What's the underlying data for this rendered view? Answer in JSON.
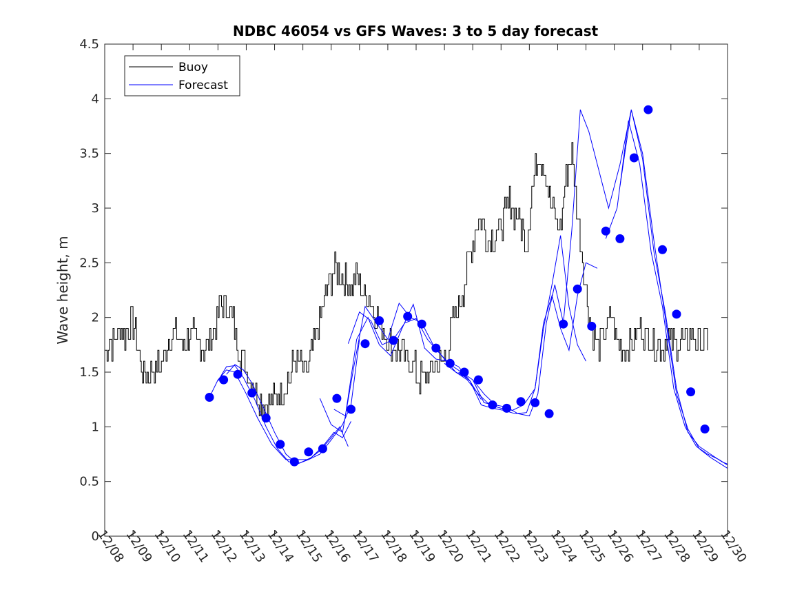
{
  "chart_data": {
    "type": "line",
    "title": "NDBC 46054 vs GFS Waves: 3 to 5 day forecast",
    "xlabel": "",
    "ylabel": "Wave height, m",
    "xlim": [
      0,
      22
    ],
    "ylim": [
      0,
      4.5
    ],
    "x_unit": "days since 12/08",
    "x_tick_values": [
      0,
      1,
      2,
      3,
      4,
      5,
      6,
      7,
      8,
      9,
      10,
      11,
      12,
      13,
      14,
      15,
      16,
      17,
      18,
      19,
      20,
      21,
      22
    ],
    "x_tick_labels": [
      "12/08",
      "12/09",
      "12/10",
      "12/11",
      "12/12",
      "12/13",
      "12/14",
      "12/15",
      "12/16",
      "12/17",
      "12/18",
      "12/19",
      "12/20",
      "12/21",
      "12/22",
      "12/23",
      "12/24",
      "12/25",
      "12/26",
      "12/27",
      "12/28",
      "12/29",
      "12/30"
    ],
    "y_tick_values": [
      0,
      0.5,
      1,
      1.5,
      2,
      2.5,
      3,
      3.5,
      4,
      4.5
    ],
    "y_tick_labels": [
      "0",
      "0.5",
      "1",
      "1.5",
      "2",
      "2.5",
      "3",
      "3.5",
      "4",
      "4.5"
    ],
    "grid": false,
    "legend": {
      "position": "top-left",
      "entries": [
        "Buoy",
        "Forecast"
      ]
    },
    "colors": {
      "buoy": "#000000",
      "forecast": "#0000ff",
      "axis": "#262626"
    },
    "buoy": {
      "name": "Buoy",
      "x": [
        0,
        0.15,
        0.3,
        0.5,
        0.7,
        0.9,
        1.1,
        1.3,
        1.5,
        1.7,
        1.9,
        2.1,
        2.3,
        2.5,
        2.7,
        2.9,
        3.1,
        3.3,
        3.5,
        3.7,
        3.9,
        4.1,
        4.3,
        4.5,
        4.7,
        4.9,
        5.1,
        5.3,
        5.5,
        5.7,
        5.9,
        6.1,
        6.3,
        6.5,
        6.7,
        6.9,
        7.1,
        7.3,
        7.5,
        7.7,
        7.9,
        8.1,
        8.3,
        8.5,
        8.7,
        8.9,
        9.1,
        9.3,
        9.5,
        9.7,
        9.9,
        10.1,
        10.3,
        10.5,
        10.7,
        10.9,
        11.1,
        11.3,
        11.5,
        11.7,
        11.9,
        12.1,
        12.3,
        12.5,
        12.7,
        12.9,
        13.1,
        13.3,
        13.5,
        13.7,
        13.9,
        14.1,
        14.3,
        14.5,
        14.7,
        14.9,
        15.1,
        15.3,
        15.5,
        15.7,
        15.9,
        16.1,
        16.3,
        16.5,
        16.7,
        16.9,
        17.1,
        17.3,
        17.5,
        17.7,
        17.9,
        18.1,
        18.3,
        18.5,
        18.7,
        18.9,
        19.1,
        19.3,
        19.5,
        19.7,
        19.9,
        20.1,
        20.3,
        20.5,
        20.7,
        20.9,
        21.1,
        21.3
      ],
      "values": [
        1.7,
        1.8,
        1.75,
        1.9,
        1.8,
        1.95,
        1.85,
        1.5,
        1.45,
        1.5,
        1.55,
        1.6,
        1.85,
        1.9,
        1.75,
        1.8,
        1.85,
        1.75,
        1.7,
        1.8,
        1.9,
        2.15,
        2.1,
        2.0,
        1.75,
        1.6,
        1.45,
        1.35,
        1.25,
        1.2,
        1.25,
        1.3,
        1.35,
        1.45,
        1.6,
        1.55,
        1.5,
        1.65,
        1.9,
        2.1,
        2.3,
        2.45,
        2.4,
        2.35,
        2.3,
        2.35,
        2.25,
        2.2,
        2.05,
        1.95,
        1.85,
        1.75,
        1.7,
        1.65,
        1.6,
        1.55,
        1.45,
        1.4,
        1.5,
        1.6,
        1.55,
        1.7,
        1.95,
        2.1,
        2.3,
        2.6,
        2.8,
        2.9,
        2.7,
        2.75,
        2.8,
        2.9,
        3.05,
        2.95,
        2.85,
        2.7,
        3.2,
        3.5,
        3.4,
        3.1,
        2.9,
        2.8,
        3.3,
        3.5,
        2.9,
        2.5,
        2.0,
        1.8,
        1.75,
        1.9,
        2.0,
        1.8,
        1.7,
        1.75,
        1.8,
        1.9,
        1.85,
        1.8,
        1.75,
        1.75,
        1.8,
        1.75,
        1.8,
        1.75,
        1.85,
        1.8,
        1.8,
        1.8
      ]
    },
    "forecast_runs": [
      {
        "x": [
          3.7,
          4.0,
          4.3,
          4.6,
          5.0,
          5.4,
          5.9,
          6.4,
          6.8,
          7.2,
          7.6,
          8.0,
          8.3,
          8.6
        ],
        "values": [
          1.27,
          1.43,
          1.52,
          1.5,
          1.3,
          1.08,
          0.84,
          0.7,
          0.7,
          0.7,
          0.78,
          0.9,
          1.0,
          0.82
        ]
      },
      {
        "x": [
          4.0,
          4.3,
          4.6,
          4.9,
          5.3,
          5.7,
          6.1,
          6.5,
          6.9,
          7.3,
          7.7,
          8.1,
          8.4,
          8.7
        ],
        "values": [
          1.42,
          1.55,
          1.56,
          1.45,
          1.25,
          1.0,
          0.8,
          0.68,
          0.67,
          0.72,
          0.82,
          0.95,
          0.9,
          1.05
        ]
      },
      {
        "x": [
          4.3,
          4.6,
          4.9,
          5.2,
          5.6,
          6.0,
          6.4,
          6.8,
          7.2,
          7.6,
          8.0,
          8.4,
          8.7,
          9.0
        ],
        "values": [
          1.48,
          1.57,
          1.52,
          1.4,
          1.18,
          0.95,
          0.75,
          0.66,
          0.7,
          0.75,
          0.88,
          1.02,
          1.2,
          1.8
        ]
      },
      {
        "x": [
          7.6,
          8.0,
          8.4,
          8.8,
          9.2,
          9.6,
          10.0,
          10.4,
          10.8,
          11.2,
          11.6,
          12.0,
          12.4,
          12.8
        ],
        "values": [
          1.26,
          1.02,
          0.95,
          1.55,
          2.1,
          1.95,
          1.8,
          2.13,
          2.0,
          1.95,
          1.75,
          1.62,
          1.5,
          1.45
        ]
      },
      {
        "x": [
          8.1,
          8.5,
          8.9,
          9.3,
          9.7,
          10.1,
          10.5,
          10.9,
          11.3,
          11.7,
          12.1,
          12.5,
          12.9,
          13.3
        ],
        "values": [
          1.16,
          1.1,
          1.8,
          2.0,
          1.75,
          1.65,
          1.9,
          2.12,
          1.72,
          1.62,
          1.6,
          1.55,
          1.42,
          1.25
        ]
      },
      {
        "x": [
          8.6,
          9.0,
          9.4,
          9.8,
          10.2,
          10.6,
          11.0,
          11.4,
          11.8,
          12.2,
          12.6,
          13.0,
          13.4,
          13.8
        ],
        "values": [
          1.76,
          2.05,
          1.97,
          1.75,
          1.8,
          1.95,
          1.99,
          1.8,
          1.68,
          1.57,
          1.5,
          1.43,
          1.3,
          1.2
        ]
      },
      {
        "x": [
          12.0,
          12.4,
          12.8,
          13.2,
          13.6,
          14.0,
          14.4,
          14.8,
          15.2,
          15.5,
          15.8,
          16.1,
          16.4,
          16.7,
          17.0
        ],
        "values": [
          1.58,
          1.5,
          1.43,
          1.3,
          1.2,
          1.17,
          1.15,
          1.2,
          1.35,
          1.9,
          2.3,
          2.75,
          2.1,
          1.75,
          1.6
        ]
      },
      {
        "x": [
          12.5,
          12.9,
          13.3,
          13.7,
          14.1,
          14.5,
          14.9,
          15.2,
          15.5,
          15.8,
          16.1,
          16.4,
          16.7,
          17.0,
          17.4
        ],
        "values": [
          1.5,
          1.42,
          1.2,
          1.17,
          1.15,
          1.12,
          1.13,
          1.35,
          1.95,
          2.2,
          1.9,
          1.7,
          2.2,
          2.5,
          2.45
        ]
      },
      {
        "x": [
          13.0,
          13.4,
          13.8,
          14.2,
          14.6,
          15.0,
          15.3,
          15.6,
          15.9,
          16.2,
          16.5,
          16.8,
          17.1,
          17.4
        ],
        "values": [
          1.43,
          1.22,
          1.2,
          1.18,
          1.12,
          1.1,
          1.3,
          1.95,
          2.3,
          1.95,
          2.8,
          3.9,
          3.7,
          3.4
        ]
      },
      {
        "x": [
          17.4,
          17.8,
          18.2,
          18.6,
          19.0,
          19.4,
          19.8,
          20.2,
          20.6,
          21.0,
          21.4,
          22.0
        ],
        "values": [
          3.4,
          3.0,
          3.4,
          3.9,
          3.5,
          2.7,
          2.0,
          1.3,
          0.98,
          0.8,
          0.72,
          0.62
        ]
      },
      {
        "x": [
          17.7,
          18.1,
          18.5,
          18.9,
          19.3,
          19.7,
          20.1,
          20.5,
          20.9,
          21.3,
          21.7,
          22.0
        ],
        "values": [
          2.72,
          3.0,
          3.8,
          3.4,
          2.6,
          2.1,
          1.35,
          1.0,
          0.82,
          0.75,
          0.7,
          0.65
        ]
      },
      {
        "x": [
          18.2,
          18.6,
          19.0,
          19.4,
          19.8,
          20.2,
          20.6,
          21.0,
          21.4,
          21.8,
          22.0
        ],
        "values": [
          3.2,
          3.9,
          3.45,
          2.6,
          2.05,
          1.35,
          0.95,
          0.82,
          0.75,
          0.68,
          0.66
        ]
      }
    ],
    "forecast_points": {
      "x": [
        3.7,
        4.2,
        4.7,
        5.2,
        5.7,
        6.2,
        6.7,
        7.2,
        7.7,
        8.2,
        8.7,
        9.2,
        9.7,
        10.2,
        10.7,
        11.2,
        11.7,
        12.2,
        12.7,
        13.2,
        13.7,
        14.2,
        14.7,
        15.2,
        15.7,
        16.2,
        16.7,
        17.2,
        17.7,
        18.2,
        18.7,
        19.2,
        19.7,
        20.2,
        20.7,
        21.2
      ],
      "values": [
        1.27,
        1.43,
        1.48,
        1.31,
        1.08,
        0.84,
        0.68,
        0.77,
        0.8,
        1.26,
        1.16,
        1.76,
        1.97,
        1.79,
        2.01,
        1.94,
        1.72,
        1.58,
        1.5,
        1.43,
        1.2,
        1.17,
        1.23,
        1.22,
        1.12,
        1.94,
        2.26,
        1.92,
        2.79,
        2.72,
        3.46,
        3.9,
        2.62,
        2.03,
        1.32,
        0.98
      ]
    }
  }
}
